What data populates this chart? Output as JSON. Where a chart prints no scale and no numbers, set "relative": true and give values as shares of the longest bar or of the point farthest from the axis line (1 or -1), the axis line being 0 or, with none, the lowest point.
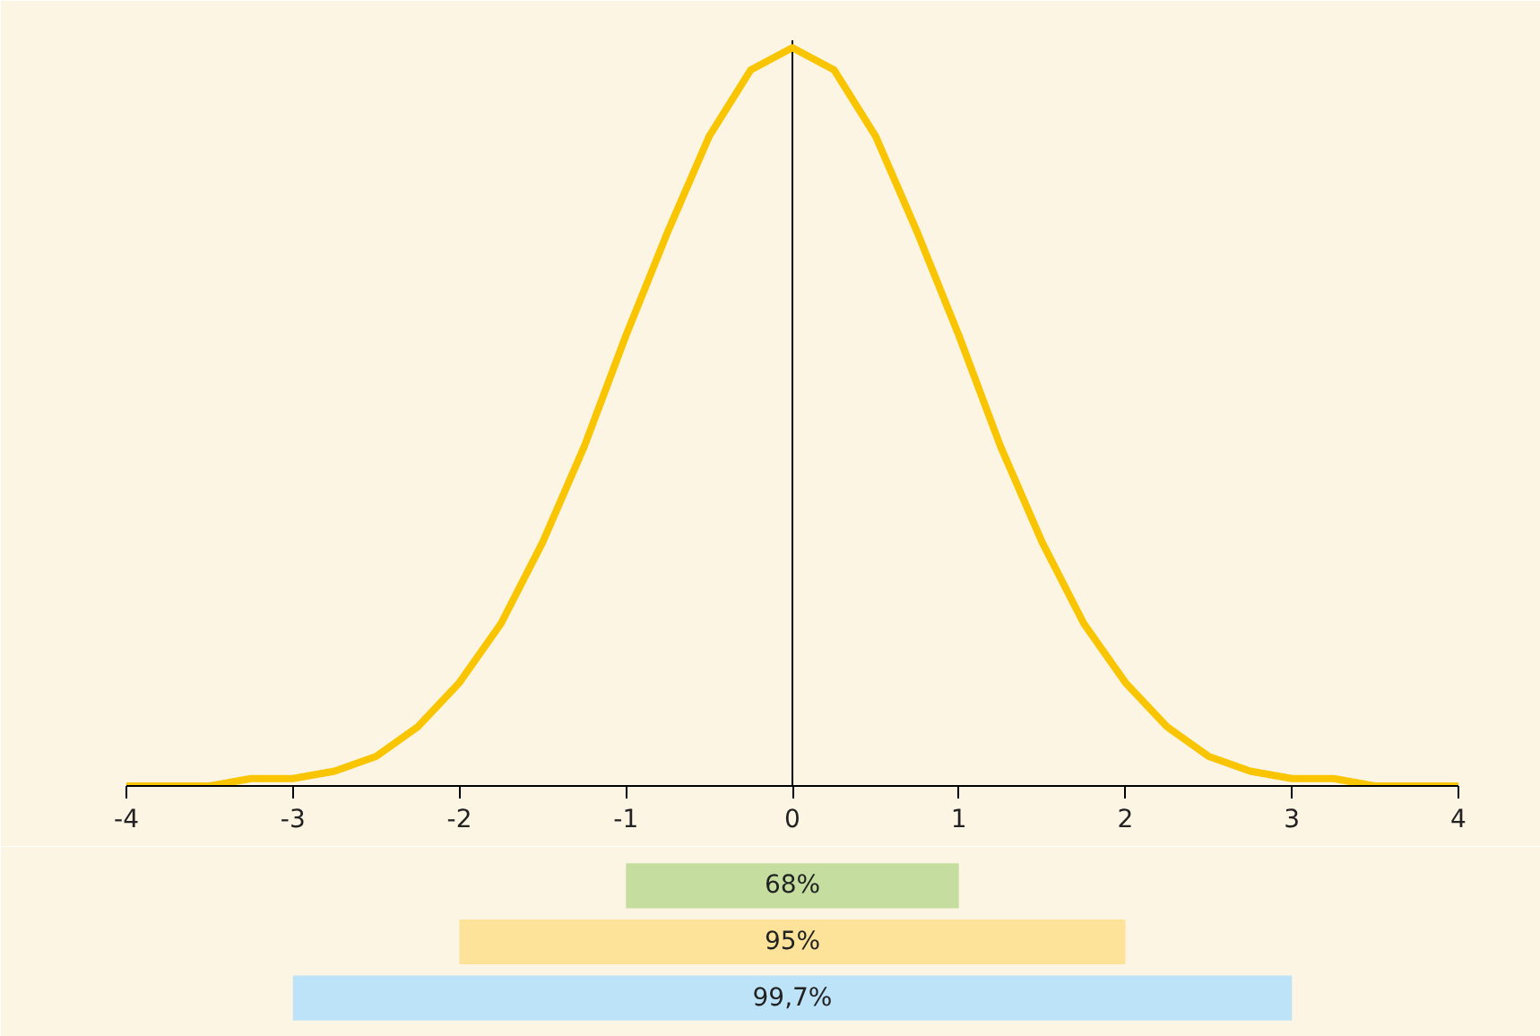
{
  "chart_data": [
    {
      "type": "line",
      "relative": true,
      "x": [
        -4,
        -3.75,
        -3.5,
        -3.25,
        -3,
        -2.75,
        -2.5,
        -2.25,
        -2,
        -1.75,
        -1.5,
        -1.25,
        -1,
        -0.75,
        -0.5,
        -0.25,
        0,
        0.25,
        0.5,
        0.75,
        1,
        1.25,
        1.5,
        1.75,
        2,
        2.25,
        2.5,
        2.75,
        3,
        3.25,
        3.5,
        3.75,
        4
      ],
      "series": [
        {
          "color": "#f9c400",
          "values": [
            0,
            0,
            0,
            0.01,
            0.01,
            0.02,
            0.04,
            0.08,
            0.14,
            0.22,
            0.33,
            0.46,
            0.61,
            0.75,
            0.88,
            0.97,
            1,
            0.97,
            0.88,
            0.75,
            0.61,
            0.46,
            0.33,
            0.22,
            0.14,
            0.08,
            0.04,
            0.02,
            0.01,
            0.01,
            0,
            0,
            0
          ]
        }
      ],
      "xlim": [
        -4,
        4
      ],
      "xticks": [
        -4,
        -3,
        -2,
        -1,
        0,
        1,
        2,
        3,
        4
      ],
      "ref_lines": [
        {
          "axis": "x",
          "value": 0,
          "color": "#000000"
        }
      ],
      "grid": false
    },
    {
      "type": "bar",
      "orientation": "horizontal",
      "categories": [
        "68%",
        "95%",
        "99,7%"
      ],
      "base": [
        -1,
        -2,
        -3
      ],
      "values": [
        2,
        4,
        6
      ],
      "colors": [
        "#c5dea0",
        "#fde39a",
        "#bde3f8"
      ],
      "xlim": [
        -4,
        4
      ],
      "tick_labels": false,
      "grid": false
    }
  ]
}
